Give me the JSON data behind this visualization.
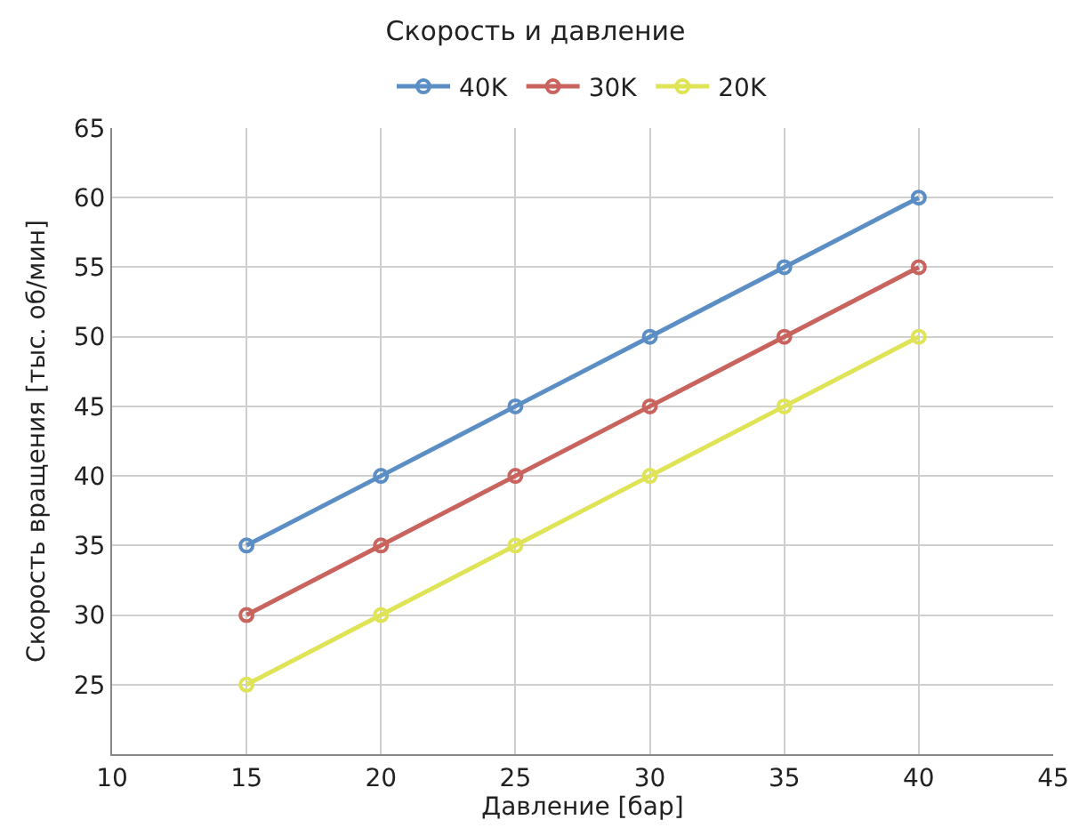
{
  "chart_data": {
    "type": "line",
    "title": "Скорость и давление",
    "xlabel": "Давление [бар]",
    "ylabel": "Скорость вращения [тыс. об/мин]",
    "x": [
      15,
      20,
      25,
      30,
      35,
      40
    ],
    "series": [
      {
        "name": "40K",
        "color": "#5b8ec4",
        "values": [
          35,
          40,
          45,
          50,
          55,
          60
        ]
      },
      {
        "name": "30K",
        "color": "#c8635e",
        "values": [
          30,
          35,
          40,
          45,
          50,
          55
        ]
      },
      {
        "name": "20K",
        "color": "#dfe356",
        "values": [
          25,
          30,
          35,
          40,
          45,
          50
        ]
      }
    ],
    "xlim": [
      10,
      45
    ],
    "xticks": [
      10,
      15,
      20,
      25,
      30,
      35,
      40,
      45
    ],
    "ylim": [
      20,
      65
    ],
    "yticks": [
      25,
      30,
      35,
      40,
      45,
      50,
      55,
      60,
      65
    ],
    "grid": true,
    "legend": "top",
    "marker": "circle",
    "line_style": "solid"
  }
}
